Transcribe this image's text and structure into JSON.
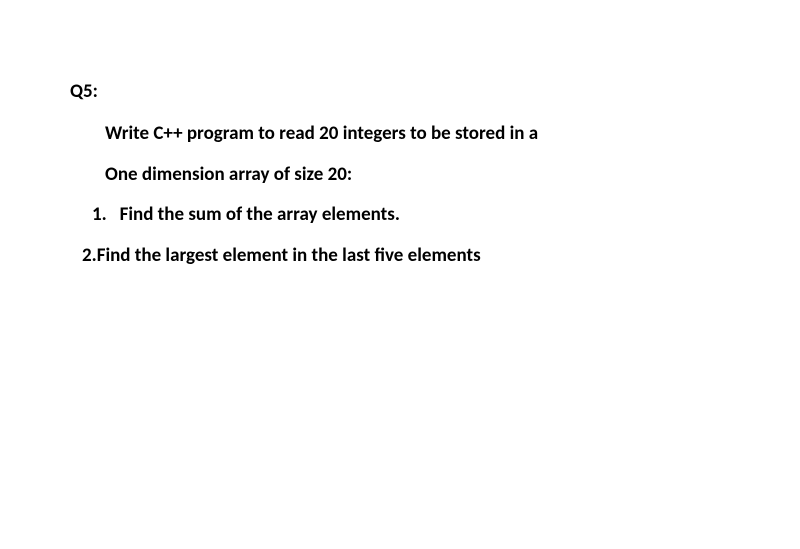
{
  "question": {
    "label": "Q5:",
    "intro_line1": "Write C++ program to read 20 integers to be stored in  a",
    "intro_line2": "One  dimension array of size 20:",
    "item1_num": "1.",
    "item1_text": "Find the sum of the array elements.",
    "item2_prefix": "2.",
    "item2_text": "Find the largest element in the last five elements"
  },
  "style": {
    "background_color": "#ffffff",
    "text_color": "#000000",
    "font_family": "Calibri, Arial, sans-serif",
    "font_size": 19,
    "font_weight": "bold"
  }
}
